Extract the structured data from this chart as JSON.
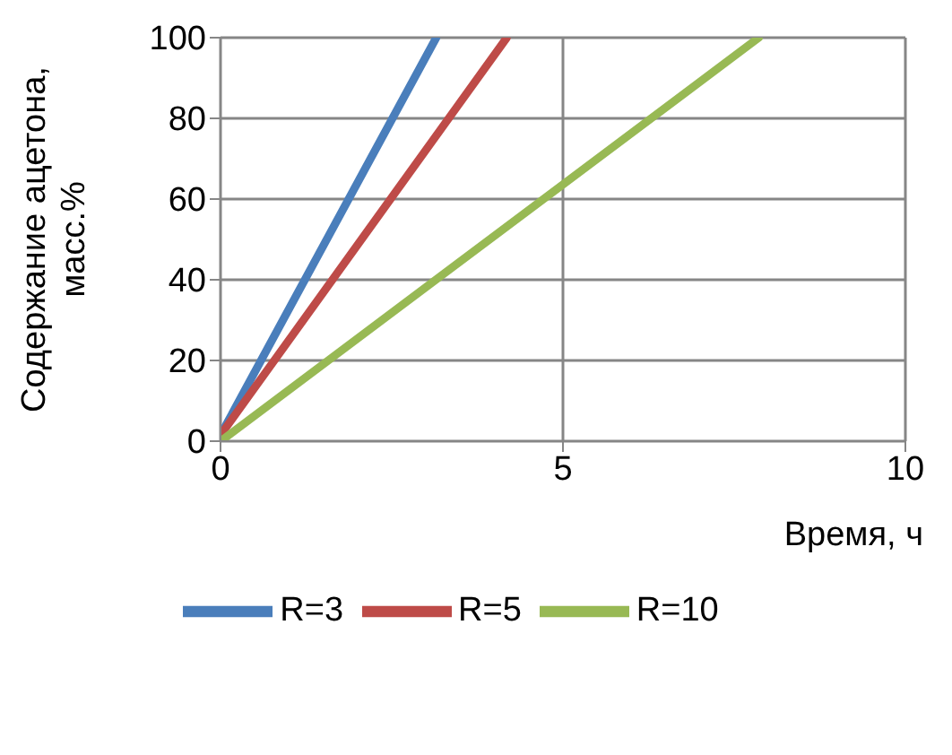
{
  "chart_data": {
    "type": "line",
    "xlabel": "Время, ч",
    "ylabel": "Содержание ацетона,\nмасс.%",
    "series": [
      {
        "name": "R=3",
        "color": "#4a7ebb",
        "x": [
          0,
          3.15
        ],
        "values": [
          1.5,
          100
        ]
      },
      {
        "name": "R=5",
        "color": "#be4b48",
        "x": [
          0,
          4.18
        ],
        "values": [
          1.5,
          100
        ]
      },
      {
        "name": "R=10",
        "color": "#98b954",
        "x": [
          0,
          7.86
        ],
        "values": [
          0,
          100
        ]
      }
    ],
    "xlim": [
      0,
      10
    ],
    "xticks": [
      0,
      5,
      10
    ],
    "ylim": [
      0,
      100
    ],
    "yticks": [
      0,
      20,
      40,
      60,
      80,
      100
    ],
    "grid": true,
    "legend": "bottom",
    "marker": "none",
    "line_style": "solid"
  }
}
